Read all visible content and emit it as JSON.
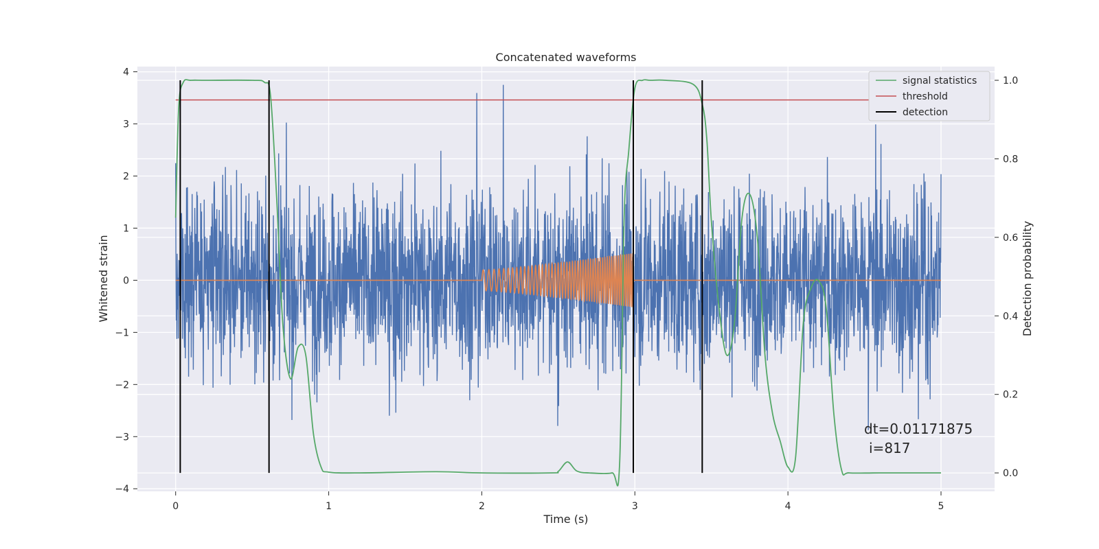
{
  "chart_data": {
    "type": "line",
    "title": "Concatenated waveforms",
    "xlabel": "Time (s)",
    "ylabel": "Whitened strain",
    "y2label": "Detection probability",
    "xlim": [
      -0.25,
      5.35
    ],
    "ylim": [
      -4.05,
      4.1
    ],
    "y2lim": [
      -0.047,
      1.035
    ],
    "x_ticks": [
      0,
      1,
      2,
      3,
      4,
      5
    ],
    "y_ticks": [
      -4,
      -3,
      -2,
      -1,
      0,
      1,
      2,
      3,
      4
    ],
    "y2_ticks": [
      0.0,
      0.2,
      0.4,
      0.6,
      0.8,
      1.0
    ],
    "y2_tick_labels": [
      "0.0",
      "0.2",
      "0.4",
      "0.6",
      "0.8",
      "1.0"
    ],
    "grid": true,
    "legend_position": "top-right",
    "series": [
      {
        "name": "",
        "axis": "left",
        "color": "#4c72b0",
        "kind": "noise",
        "x_range": [
          0,
          5
        ],
        "approx_std": 0.9,
        "approx_range": [
          -3.7,
          3.75
        ]
      },
      {
        "name": "",
        "axis": "left",
        "color": "#dd8452",
        "kind": "chirp",
        "x": [
          0,
          2.0,
          2.0,
          2.5,
          2.99,
          2.99,
          5.0
        ],
        "amplitude": [
          0,
          0,
          0.2,
          0.3,
          0.52,
          0,
          0
        ]
      },
      {
        "name": "signal statistics",
        "axis": "right",
        "color": "#55a868",
        "x": [
          0.0,
          0.02,
          0.05,
          0.1,
          0.2,
          0.5,
          0.58,
          0.62,
          0.66,
          0.7,
          0.75,
          0.8,
          0.85,
          0.9,
          0.95,
          1.0,
          1.2,
          1.7,
          2.0,
          2.45,
          2.5,
          2.56,
          2.62,
          2.7,
          2.85,
          2.9,
          2.93,
          2.96,
          3.0,
          3.05,
          3.1,
          3.2,
          3.38,
          3.44,
          3.47,
          3.5,
          3.55,
          3.6,
          3.65,
          3.7,
          3.75,
          3.8,
          3.85,
          3.9,
          3.95,
          4.0,
          4.05,
          4.1,
          4.15,
          4.2,
          4.25,
          4.3,
          4.35,
          4.4,
          4.6,
          5.0
        ],
        "y": [
          0.65,
          0.93,
          0.995,
          1.0,
          1.0,
          1.0,
          0.995,
          0.96,
          0.7,
          0.38,
          0.24,
          0.32,
          0.3,
          0.1,
          0.015,
          0.002,
          0.0,
          0.003,
          0.0,
          0.0,
          0.004,
          0.028,
          0.005,
          0.0,
          0.0,
          0.02,
          0.65,
          0.82,
          0.98,
          1.0,
          1.0,
          1.0,
          0.99,
          0.94,
          0.85,
          0.64,
          0.42,
          0.3,
          0.38,
          0.65,
          0.71,
          0.6,
          0.3,
          0.15,
          0.08,
          0.015,
          0.04,
          0.38,
          0.47,
          0.49,
          0.42,
          0.15,
          0.008,
          0.0,
          0.0,
          0.0
        ]
      },
      {
        "name": "threshold",
        "axis": "right",
        "color": "#c44e52",
        "x": [
          0,
          5.1
        ],
        "y": [
          0.95,
          0.95
        ]
      },
      {
        "name": "detection",
        "axis": "right",
        "color": "#000000",
        "kind": "vlines",
        "x": [
          0.03,
          0.61,
          2.99,
          3.44
        ],
        "y_range": [
          0.0,
          1.0
        ]
      }
    ],
    "annotations": [
      "dt=0.01171875",
      "i=817"
    ]
  }
}
